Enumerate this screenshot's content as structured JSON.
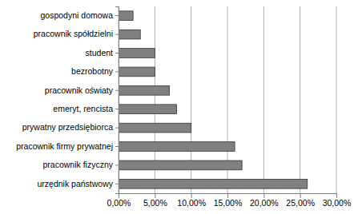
{
  "chart_data": {
    "type": "bar",
    "orientation": "horizontal",
    "categories": [
      "gospodyni domowa",
      "pracownik spółdzielni",
      "student",
      "bezrobotny",
      "pracownik oświaty",
      "emeryt, rencista",
      "prywatny przedsiębiorca",
      "pracownik firmy prywatnej",
      "pracownik fizyczny",
      "urzędnik państwowy"
    ],
    "values": [
      2,
      3,
      5,
      5,
      7,
      8,
      10,
      16,
      17,
      26
    ],
    "color": "#808080",
    "xlim": [
      0,
      30
    ],
    "xticks": [
      {
        "value": 0,
        "label": "0,00%"
      },
      {
        "value": 5,
        "label": "5,00%"
      },
      {
        "value": 10,
        "label": "10,00%"
      },
      {
        "value": 15,
        "label": "15,00%"
      },
      {
        "value": 20,
        "label": "20,00%"
      },
      {
        "value": 25,
        "label": "25,00%"
      },
      {
        "value": 30,
        "label": "30,00%"
      }
    ],
    "grid": true
  }
}
